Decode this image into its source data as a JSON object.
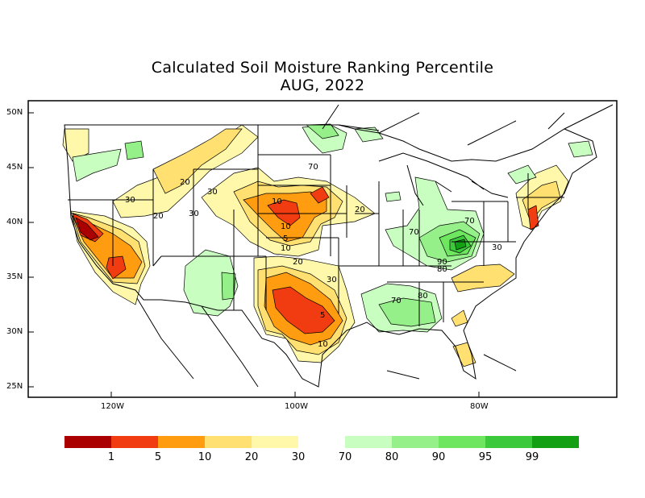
{
  "title": {
    "line1": "Calculated Soil Moisture Ranking Percentile",
    "line2": "AUG, 2022"
  },
  "lat_labels": [
    "50N",
    "45N",
    "40N",
    "35N",
    "30N",
    "25N"
  ],
  "lon_labels": [
    "120W",
    "100W",
    "80W"
  ],
  "legend": {
    "colors": [
      "#aa0000",
      "#f03c10",
      "#ff9c10",
      "#ffe070",
      "#fff8aa",
      "#c8ffc0",
      "#96f08a",
      "#6ee660",
      "#3cca3c",
      "#14a014"
    ],
    "labels": [
      "1",
      "5",
      "10",
      "20",
      "30",
      "70",
      "80",
      "90",
      "95",
      "99"
    ]
  },
  "contour_labels": [
    "70",
    "20",
    "30",
    "10",
    "30",
    "20",
    "30",
    "20",
    "10",
    "5",
    "10",
    "20",
    "30",
    "5",
    "10",
    "70",
    "70",
    "90",
    "80",
    "30",
    "70",
    "80"
  ]
}
